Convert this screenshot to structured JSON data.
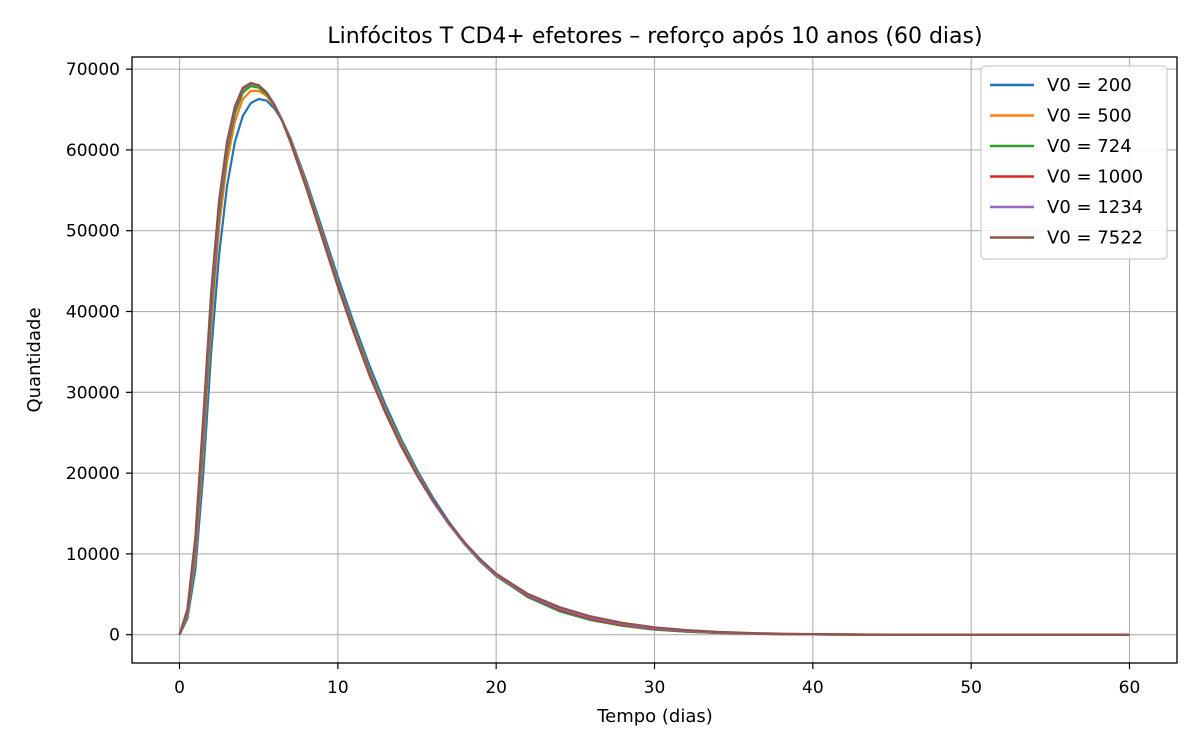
{
  "chart_data": {
    "type": "line",
    "title": "Linfócitos T CD4+ efetores – reforço após 10 anos (60 dias)",
    "xlabel": "Tempo (dias)",
    "ylabel": "Quantidade",
    "xlim": [
      -3,
      63
    ],
    "ylim": [
      -3500,
      71500
    ],
    "xticks": [
      0,
      10,
      20,
      30,
      40,
      50,
      60
    ],
    "yticks": [
      0,
      10000,
      20000,
      30000,
      40000,
      50000,
      60000,
      70000
    ],
    "grid": true,
    "legend_position": "top-right",
    "series": [
      {
        "name": "V0 = 200",
        "color": "#1f77b4",
        "x": [
          0,
          0.5,
          1,
          1.5,
          2,
          2.5,
          3,
          3.5,
          4,
          4.5,
          5,
          5.5,
          6,
          6.5,
          7,
          8,
          9,
          10,
          11,
          12,
          13,
          14,
          15,
          16,
          17,
          18,
          19,
          20,
          22,
          24,
          26,
          28,
          30,
          32,
          34,
          36,
          38,
          40,
          42,
          45,
          50,
          55,
          60
        ],
        "y": [
          0,
          2000,
          8000,
          20000,
          35000,
          47000,
          55500,
          61000,
          64200,
          65800,
          66300,
          66100,
          65100,
          63600,
          61500,
          56200,
          50300,
          44300,
          38600,
          33300,
          28500,
          24200,
          20400,
          17000,
          14000,
          11400,
          9200,
          7300,
          4650,
          2900,
          1800,
          1100,
          650,
          380,
          220,
          130,
          75,
          40,
          20,
          5,
          0,
          0,
          0
        ]
      },
      {
        "name": "V0 = 500",
        "color": "#ff7f0e",
        "x": [
          0,
          0.5,
          1,
          1.5,
          2,
          2.5,
          3,
          3.5,
          4,
          4.5,
          5,
          5.5,
          6,
          6.5,
          7,
          8,
          9,
          10,
          11,
          12,
          13,
          14,
          15,
          16,
          17,
          18,
          19,
          20,
          22,
          24,
          26,
          28,
          30,
          32,
          34,
          36,
          38,
          40,
          42,
          45,
          50,
          55,
          60
        ],
        "y": [
          0,
          2400,
          9500,
          23000,
          38500,
          50500,
          58500,
          63500,
          66300,
          67300,
          67300,
          66700,
          65400,
          63600,
          61300,
          55800,
          49700,
          43600,
          37900,
          32600,
          27900,
          23700,
          20000,
          16700,
          13800,
          11300,
          9100,
          7300,
          4700,
          3000,
          1850,
          1120,
          670,
          400,
          230,
          135,
          78,
          42,
          22,
          6,
          0,
          0,
          0
        ]
      },
      {
        "name": "V0 = 724",
        "color": "#2ca02c",
        "x": [
          0,
          0.5,
          1,
          1.5,
          2,
          2.5,
          3,
          3.5,
          4,
          4.5,
          5,
          5.5,
          6,
          6.5,
          7,
          8,
          9,
          10,
          11,
          12,
          13,
          14,
          15,
          16,
          17,
          18,
          19,
          20,
          22,
          24,
          26,
          28,
          30,
          32,
          34,
          36,
          38,
          40,
          42,
          45,
          50,
          55,
          60
        ],
        "y": [
          0,
          2600,
          10200,
          24200,
          39800,
          51800,
          59700,
          64500,
          67100,
          67900,
          67700,
          66900,
          65500,
          63600,
          61200,
          55600,
          49500,
          43400,
          37700,
          32400,
          27700,
          23500,
          19800,
          16600,
          13700,
          11200,
          9050,
          7250,
          4680,
          2950,
          1830,
          1100,
          650,
          380,
          220,
          130,
          75,
          40,
          20,
          5,
          0,
          0,
          0
        ]
      },
      {
        "name": "V0 = 1000",
        "color": "#d62728",
        "x": [
          0,
          0.5,
          1,
          1.5,
          2,
          2.5,
          3,
          3.5,
          4,
          4.5,
          5,
          5.5,
          6,
          6.5,
          7,
          8,
          9,
          10,
          11,
          12,
          13,
          14,
          15,
          16,
          17,
          18,
          19,
          20,
          22,
          24,
          26,
          28,
          30,
          32,
          34,
          36,
          38,
          40,
          42,
          45,
          50,
          55,
          60
        ],
        "y": [
          0,
          2800,
          10800,
          25200,
          40800,
          52600,
          60300,
          65000,
          67500,
          68200,
          68000,
          67100,
          65600,
          63600,
          61200,
          55500,
          49400,
          43300,
          37600,
          32300,
          27600,
          23400,
          19800,
          16600,
          13800,
          11300,
          9150,
          7350,
          4800,
          3100,
          1950,
          1200,
          720,
          430,
          250,
          145,
          82,
          45,
          24,
          7,
          0,
          0,
          0
        ]
      },
      {
        "name": "V0 = 1234",
        "color": "#9467bd",
        "x": [
          0,
          0.5,
          1,
          1.5,
          2,
          2.5,
          3,
          3.5,
          4,
          4.5,
          5,
          5.5,
          6,
          6.5,
          7,
          8,
          9,
          10,
          11,
          12,
          13,
          14,
          15,
          16,
          17,
          18,
          19,
          20,
          22,
          24,
          26,
          28,
          30,
          32,
          34,
          36,
          38,
          40,
          42,
          45,
          50,
          55,
          60
        ],
        "y": [
          0,
          2900,
          11100,
          25700,
          41200,
          52900,
          60500,
          65100,
          67600,
          68200,
          68000,
          67100,
          65600,
          63600,
          61100,
          55400,
          49300,
          43200,
          37500,
          32200,
          27500,
          23300,
          19700,
          16500,
          13700,
          11250,
          9150,
          7400,
          4900,
          3250,
          2100,
          1320,
          800,
          480,
          280,
          160,
          90,
          50,
          26,
          8,
          0,
          0,
          0
        ]
      },
      {
        "name": "V0 = 7522",
        "color": "#8c564b",
        "x": [
          0,
          0.5,
          1,
          1.5,
          2,
          2.5,
          3,
          3.5,
          4,
          4.5,
          5,
          5.5,
          6,
          6.5,
          7,
          8,
          9,
          10,
          11,
          12,
          13,
          14,
          15,
          16,
          17,
          18,
          19,
          20,
          22,
          24,
          26,
          28,
          30,
          32,
          34,
          36,
          38,
          40,
          42,
          45,
          50,
          55,
          60
        ],
        "y": [
          0,
          3200,
          12000,
          27000,
          42500,
          53800,
          61000,
          65400,
          67700,
          68300,
          68000,
          67100,
          65500,
          63500,
          61000,
          55300,
          49200,
          43100,
          37400,
          32100,
          27500,
          23400,
          19800,
          16700,
          13900,
          11450,
          9350,
          7550,
          5050,
          3400,
          2250,
          1450,
          920,
          570,
          350,
          210,
          125,
          75,
          45,
          20,
          5,
          0,
          0
        ]
      }
    ]
  }
}
